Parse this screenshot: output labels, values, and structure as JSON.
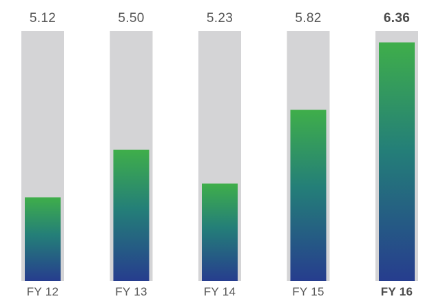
{
  "chart_data": {
    "type": "bar",
    "categories": [
      "FY 12",
      "FY 13",
      "FY 14",
      "FY 15",
      "FY 16"
    ],
    "values": [
      5.12,
      5.5,
      5.23,
      5.82,
      6.36
    ],
    "value_labels": [
      "5.12",
      "5.50",
      "5.23",
      "5.82",
      "6.36"
    ],
    "highlight_index": 4,
    "ylim": [
      4.45,
      6.6
    ],
    "grid": false,
    "legend": "none",
    "colors": {
      "track": "#d4d4d6",
      "bar_top": "#3fae4a",
      "bar_mid": "#247f78",
      "bar_bottom": "#263d8e",
      "text": "#555555"
    }
  }
}
